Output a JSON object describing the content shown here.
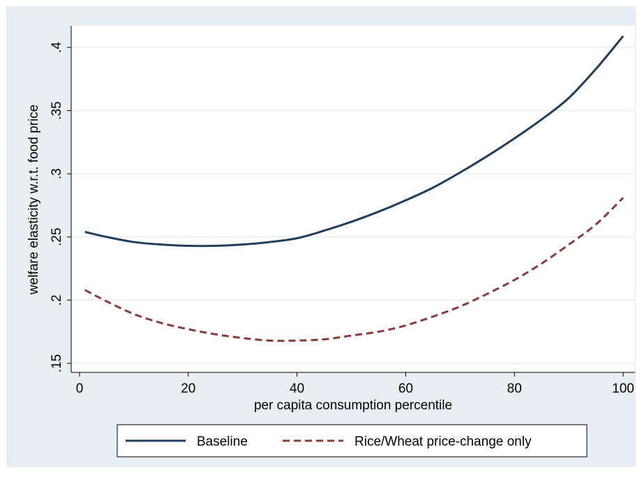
{
  "chart_data": {
    "type": "line",
    "title": "",
    "xlabel": "per capita consumption percentile",
    "ylabel": "welfare elasticity w.r.t. food price",
    "xlim": [
      0,
      100
    ],
    "ylim": [
      0.15,
      0.41
    ],
    "xticks": [
      0,
      20,
      40,
      60,
      80,
      100
    ],
    "xtick_labels": [
      "0",
      "20",
      "40",
      "60",
      "80",
      "100"
    ],
    "yticks": [
      0.15,
      0.2,
      0.25,
      0.3,
      0.35,
      0.4
    ],
    "ytick_labels": [
      ".15",
      ".2",
      ".25",
      ".3",
      ".35",
      ".4"
    ],
    "grid": "horizontal",
    "legend_position": "bottom",
    "series": [
      {
        "name": "Baseline",
        "color": "#1f3d5c",
        "style": "solid",
        "x": [
          1,
          5,
          10,
          15,
          20,
          25,
          30,
          35,
          40,
          45,
          50,
          55,
          60,
          65,
          70,
          75,
          80,
          85,
          90,
          95,
          100
        ],
        "values": [
          0.254,
          0.25,
          0.246,
          0.244,
          0.243,
          0.243,
          0.244,
          0.246,
          0.249,
          0.255,
          0.262,
          0.27,
          0.279,
          0.289,
          0.301,
          0.314,
          0.328,
          0.343,
          0.36,
          0.383,
          0.409
        ]
      },
      {
        "name": "Rice/Wheat price-change only",
        "color": "#8b3a3a",
        "style": "dashed",
        "x": [
          1,
          5,
          10,
          15,
          20,
          25,
          30,
          35,
          40,
          45,
          50,
          55,
          60,
          65,
          70,
          75,
          80,
          85,
          90,
          95,
          100
        ],
        "values": [
          0.208,
          0.199,
          0.189,
          0.182,
          0.177,
          0.173,
          0.17,
          0.168,
          0.168,
          0.169,
          0.172,
          0.175,
          0.18,
          0.187,
          0.195,
          0.205,
          0.216,
          0.229,
          0.244,
          0.26,
          0.281
        ]
      }
    ]
  }
}
